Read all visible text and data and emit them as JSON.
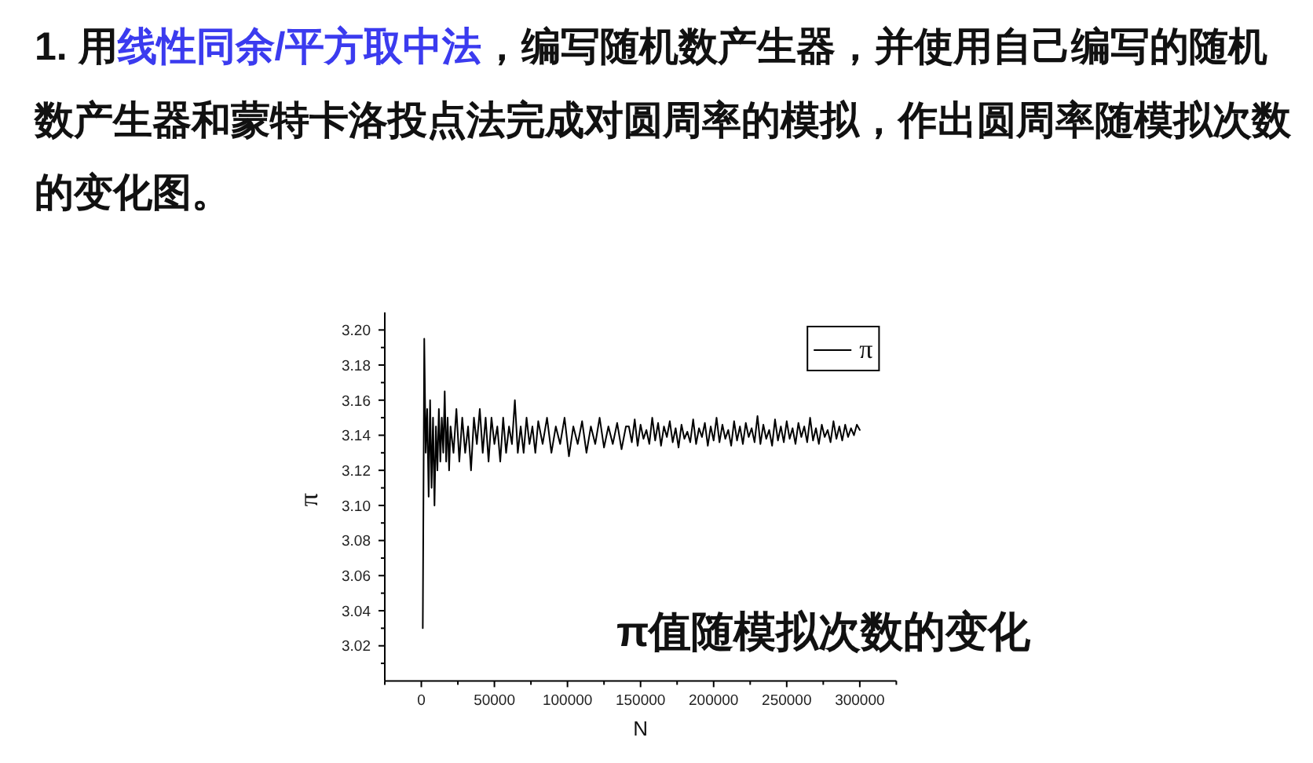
{
  "chart_data": {
    "type": "line",
    "title": "1. 用**线性同余/平方取中法**，编写随机数产生器，并使用自己编写的随机数产生器和蒙特卡洛投点法完成对圆周率的模拟，作出圆周率随模拟次数的变化图。",
    "xlabel": "N",
    "ylabel": "π",
    "annotations": [
      "π值随模拟次数的变化"
    ],
    "x": [
      1000,
      2000,
      3000,
      4000,
      5000,
      6000,
      7000,
      8000,
      9000,
      10000,
      11000,
      12000,
      13000,
      14000,
      15000,
      16000,
      17000,
      18000,
      19000,
      20000,
      22000,
      24000,
      26000,
      28000,
      30000,
      32000,
      34000,
      36000,
      38000,
      40000,
      42000,
      44000,
      46000,
      48000,
      50000,
      52000,
      54000,
      56000,
      58000,
      60000,
      62000,
      64000,
      66000,
      68000,
      70000,
      72000,
      74000,
      76000,
      78000,
      80000,
      83000,
      86000,
      89000,
      92000,
      95000,
      98000,
      101000,
      104000,
      107000,
      110000,
      113000,
      116000,
      119000,
      122000,
      125000,
      128000,
      131000,
      134000,
      137000,
      140000,
      142000,
      144000,
      146000,
      148000,
      150000,
      152000,
      154000,
      156000,
      158000,
      160000,
      162000,
      164000,
      166000,
      168000,
      170000,
      172000,
      174000,
      176000,
      178000,
      180000,
      182000,
      184000,
      186000,
      188000,
      190000,
      192000,
      194000,
      196000,
      198000,
      200000,
      202000,
      204000,
      206000,
      208000,
      210000,
      212000,
      214000,
      216000,
      218000,
      220000,
      222000,
      224000,
      226000,
      228000,
      230000,
      232000,
      234000,
      236000,
      238000,
      240000,
      242000,
      244000,
      246000,
      248000,
      250000,
      252000,
      254000,
      256000,
      258000,
      260000,
      262000,
      264000,
      266000,
      268000,
      270000,
      272000,
      274000,
      276000,
      278000,
      280000,
      282000,
      284000,
      286000,
      288000,
      290000,
      292000,
      294000,
      296000,
      298000,
      300000
    ],
    "series": [
      {
        "name": "π",
        "color": "#000000",
        "values": [
          3.03,
          3.195,
          3.13,
          3.155,
          3.105,
          3.16,
          3.11,
          3.15,
          3.1,
          3.145,
          3.12,
          3.155,
          3.125,
          3.15,
          3.13,
          3.165,
          3.125,
          3.15,
          3.12,
          3.145,
          3.13,
          3.155,
          3.125,
          3.15,
          3.13,
          3.145,
          3.12,
          3.15,
          3.135,
          3.155,
          3.13,
          3.15,
          3.125,
          3.15,
          3.135,
          3.145,
          3.125,
          3.15,
          3.13,
          3.145,
          3.135,
          3.16,
          3.13,
          3.145,
          3.13,
          3.15,
          3.135,
          3.145,
          3.13,
          3.148,
          3.135,
          3.15,
          3.13,
          3.145,
          3.135,
          3.15,
          3.128,
          3.145,
          3.135,
          3.148,
          3.13,
          3.145,
          3.135,
          3.15,
          3.133,
          3.145,
          3.135,
          3.147,
          3.132,
          3.145,
          3.145,
          3.136,
          3.149,
          3.134,
          3.146,
          3.138,
          3.143,
          3.135,
          3.15,
          3.137,
          3.147,
          3.134,
          3.145,
          3.139,
          3.148,
          3.136,
          3.144,
          3.133,
          3.146,
          3.138,
          3.142,
          3.136,
          3.149,
          3.135,
          3.144,
          3.139,
          3.147,
          3.134,
          3.145,
          3.137,
          3.15,
          3.136,
          3.146,
          3.138,
          3.143,
          3.134,
          3.148,
          3.137,
          3.145,
          3.135,
          3.147,
          3.139,
          3.144,
          3.136,
          3.151,
          3.135,
          3.146,
          3.138,
          3.143,
          3.134,
          3.149,
          3.137,
          3.145,
          3.136,
          3.148,
          3.138,
          3.144,
          3.135,
          3.147,
          3.139,
          3.145,
          3.136,
          3.15,
          3.137,
          3.144,
          3.135,
          3.146,
          3.139,
          3.143,
          3.136,
          3.148,
          3.138,
          3.145,
          3.137,
          3.146,
          3.139,
          3.144,
          3.14,
          3.146,
          3.143
        ]
      }
    ],
    "xlim": [
      -25000,
      325000
    ],
    "xticks": [
      {
        "value": -25000,
        "label": null
      },
      0,
      {
        "value": 25000,
        "label": null
      },
      50000,
      {
        "value": 75000,
        "label": null
      },
      100000,
      {
        "value": 125000,
        "label": null
      },
      150000,
      {
        "value": 175000,
        "label": null
      },
      200000,
      {
        "value": 225000,
        "label": null
      },
      250000,
      {
        "value": 275000,
        "label": null
      },
      300000,
      {
        "value": 325000,
        "label": null
      }
    ],
    "ylim": [
      3.0,
      3.21
    ],
    "yticks": [
      {
        "value": 3.01,
        "label": null
      },
      3.02,
      {
        "value": 3.03,
        "label": null
      },
      3.04,
      {
        "value": 3.05,
        "label": null
      },
      3.06,
      {
        "value": 3.07,
        "label": null
      },
      3.08,
      {
        "value": 3.09,
        "label": null
      },
      {
        "value": 3.1,
        "label": "3.10"
      },
      {
        "value": 3.11,
        "label": null
      },
      3.12,
      {
        "value": 3.13,
        "label": null
      },
      3.14,
      {
        "value": 3.15,
        "label": null
      },
      3.16,
      {
        "value": 3.17,
        "label": null
      },
      3.18,
      {
        "value": 3.19,
        "label": null
      },
      {
        "value": 3.2,
        "label": "3.20"
      }
    ],
    "legend": "top right",
    "line_style": "solid"
  }
}
